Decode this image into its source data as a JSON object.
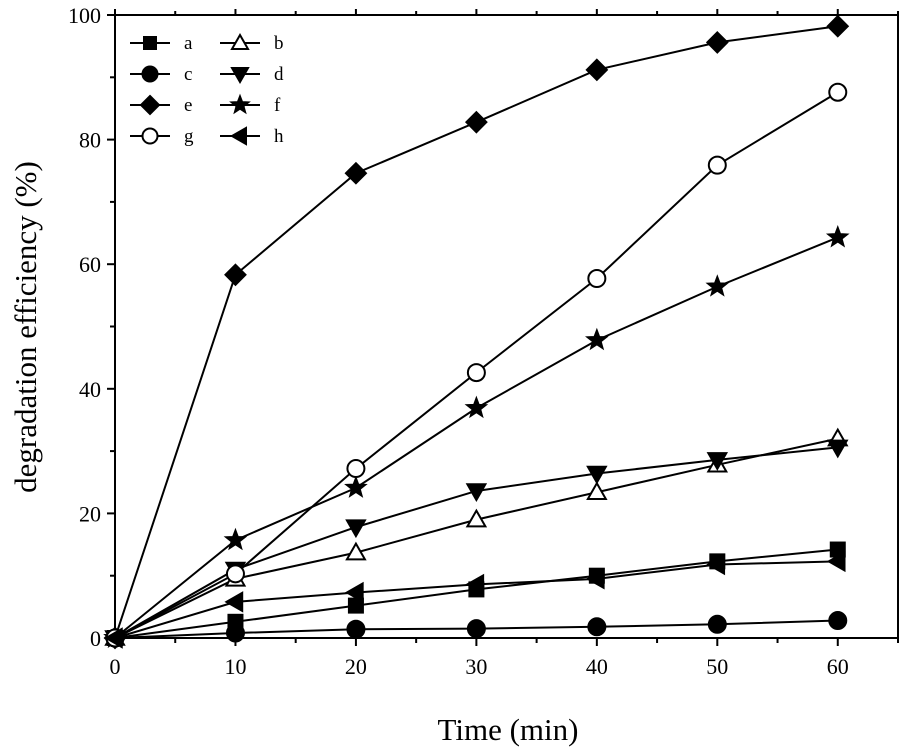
{
  "chart_data": {
    "type": "line",
    "title": "",
    "xlabel": "Time (min)",
    "ylabel": "degradation efficiency (%)",
    "xlim": [
      0,
      65
    ],
    "ylim": [
      0,
      100
    ],
    "x_ticks": [
      "0",
      "10",
      "20",
      "30",
      "40",
      "50",
      "60"
    ],
    "y_ticks": [
      "0",
      "20",
      "40",
      "60",
      "80",
      "100"
    ],
    "grid": false,
    "legend_position": "top-left",
    "x": [
      0,
      10,
      20,
      30,
      40,
      50,
      60
    ],
    "series": [
      {
        "name": "a",
        "marker": "square-filled",
        "values": [
          0,
          2.6,
          5.2,
          7.8,
          10.0,
          12.3,
          14.2
        ]
      },
      {
        "name": "b",
        "marker": "triangle-up-open",
        "values": [
          0,
          9.5,
          13.7,
          19.0,
          23.4,
          27.8,
          32.0
        ]
      },
      {
        "name": "c",
        "marker": "circle-filled",
        "values": [
          0,
          0.8,
          1.4,
          1.5,
          1.8,
          2.2,
          2.8
        ]
      },
      {
        "name": "d",
        "marker": "triangle-down-filled",
        "values": [
          0,
          11.0,
          17.8,
          23.6,
          26.4,
          28.6,
          30.6
        ]
      },
      {
        "name": "e",
        "marker": "diamond-filled",
        "values": [
          0,
          58.3,
          74.6,
          82.8,
          91.2,
          95.6,
          98.2
        ]
      },
      {
        "name": "f",
        "marker": "star-filled",
        "values": [
          0,
          15.7,
          24.1,
          36.9,
          47.8,
          56.4,
          64.3
        ]
      },
      {
        "name": "g",
        "marker": "circle-open",
        "values": [
          0,
          10.3,
          27.2,
          42.6,
          57.7,
          75.9,
          87.6
        ]
      },
      {
        "name": "h",
        "marker": "triangle-left-filled",
        "values": [
          0,
          5.8,
          7.3,
          8.6,
          9.5,
          11.8,
          12.3
        ]
      }
    ],
    "legend": {
      "rows": [
        [
          "a",
          "b"
        ],
        [
          "c",
          "d"
        ],
        [
          "e",
          "f"
        ],
        [
          "g",
          "h"
        ]
      ]
    },
    "colors": {
      "line": "#000000",
      "background": "#ffffff"
    }
  }
}
